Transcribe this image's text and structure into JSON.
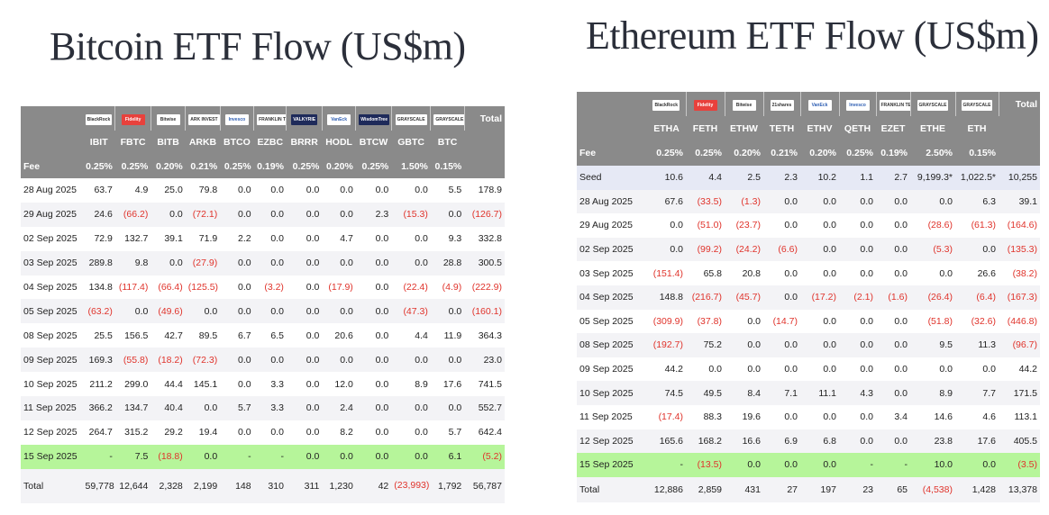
{
  "btc": {
    "title": "Bitcoin ETF Flow (US$m)",
    "logos": [
      "BlackRock",
      "Fidelity",
      "Bitwise",
      "ARK INVEST",
      "Invesco",
      "FRANKLIN TEMPLETON",
      "VALKYRIE",
      "VanEck",
      "WisdomTree",
      "GRAYSCALE",
      "GRAYSCALE"
    ],
    "total_header": "Total",
    "tickers": [
      "IBIT",
      "FBTC",
      "BITB",
      "ARKB",
      "BTCO",
      "EZBC",
      "BRRR",
      "HODL",
      "BTCW",
      "GBTC",
      "BTC"
    ],
    "fee_label": "Fee",
    "fees": [
      "0.25%",
      "0.25%",
      "0.20%",
      "0.21%",
      "0.25%",
      "0.19%",
      "0.25%",
      "0.20%",
      "0.25%",
      "1.50%",
      "0.15%"
    ],
    "rows": [
      {
        "date": "28 Aug 2025",
        "values": [
          "63.7",
          "4.9",
          "25.0",
          "79.8",
          "0.0",
          "0.0",
          "0.0",
          "0.0",
          "0.0",
          "0.0",
          "5.5",
          "178.9"
        ]
      },
      {
        "date": "29 Aug 2025",
        "values": [
          "24.6",
          "(66.2)",
          "0.0",
          "(72.1)",
          "0.0",
          "0.0",
          "0.0",
          "0.0",
          "2.3",
          "(15.3)",
          "0.0",
          "(126.7)"
        ]
      },
      {
        "date": "02 Sep 2025",
        "values": [
          "72.9",
          "132.7",
          "39.1",
          "71.9",
          "2.2",
          "0.0",
          "0.0",
          "4.7",
          "0.0",
          "0.0",
          "9.3",
          "332.8"
        ]
      },
      {
        "date": "03 Sep 2025",
        "values": [
          "289.8",
          "9.8",
          "0.0",
          "(27.9)",
          "0.0",
          "0.0",
          "0.0",
          "0.0",
          "0.0",
          "0.0",
          "28.8",
          "300.5"
        ]
      },
      {
        "date": "04 Sep 2025",
        "values": [
          "134.8",
          "(117.4)",
          "(66.4)",
          "(125.5)",
          "0.0",
          "(3.2)",
          "0.0",
          "(17.9)",
          "0.0",
          "(22.4)",
          "(4.9)",
          "(222.9)"
        ]
      },
      {
        "date": "05 Sep 2025",
        "values": [
          "(63.2)",
          "0.0",
          "(49.6)",
          "0.0",
          "0.0",
          "0.0",
          "0.0",
          "0.0",
          "0.0",
          "(47.3)",
          "0.0",
          "(160.1)"
        ]
      },
      {
        "date": "08 Sep 2025",
        "values": [
          "25.5",
          "156.5",
          "42.7",
          "89.5",
          "6.7",
          "6.5",
          "0.0",
          "20.6",
          "0.0",
          "4.4",
          "11.9",
          "364.3"
        ]
      },
      {
        "date": "09 Sep 2025",
        "values": [
          "169.3",
          "(55.8)",
          "(18.2)",
          "(72.3)",
          "0.0",
          "0.0",
          "0.0",
          "0.0",
          "0.0",
          "0.0",
          "0.0",
          "23.0"
        ]
      },
      {
        "date": "10 Sep 2025",
        "values": [
          "211.2",
          "299.0",
          "44.4",
          "145.1",
          "0.0",
          "3.3",
          "0.0",
          "12.0",
          "0.0",
          "8.9",
          "17.6",
          "741.5"
        ]
      },
      {
        "date": "11 Sep 2025",
        "values": [
          "366.2",
          "134.7",
          "40.4",
          "0.0",
          "5.7",
          "3.3",
          "0.0",
          "2.4",
          "0.0",
          "0.0",
          "0.0",
          "552.7"
        ]
      },
      {
        "date": "12 Sep 2025",
        "values": [
          "264.7",
          "315.2",
          "29.2",
          "19.4",
          "0.0",
          "0.0",
          "0.0",
          "8.2",
          "0.0",
          "0.0",
          "5.7",
          "642.4"
        ]
      },
      {
        "date": "15 Sep 2025",
        "values": [
          "-",
          "7.5",
          "(18.8)",
          "0.0",
          "-",
          "-",
          "0.0",
          "0.0",
          "0.0",
          "0.0",
          "6.1",
          "(5.2)"
        ]
      }
    ],
    "total_label": "Total",
    "totals": [
      "59,778",
      "12,644",
      "2,328",
      "2,199",
      "148",
      "310",
      "311",
      "1,230",
      "42",
      "(23,993)",
      "1,792",
      "56,787"
    ]
  },
  "eth": {
    "title": "Ethereum ETF Flow (US$m)",
    "logos": [
      "BlackRock",
      "Fidelity",
      "Bitwise",
      "21shares",
      "VanEck",
      "Invesco",
      "FRANKLIN TEMPLETON",
      "GRAYSCALE",
      "GRAYSCALE"
    ],
    "total_header": "Total",
    "tickers": [
      "ETHA",
      "FETH",
      "ETHW",
      "TETH",
      "ETHV",
      "QETH",
      "EZET",
      "ETHE",
      "ETH"
    ],
    "fee_label": "Fee",
    "fees": [
      "0.25%",
      "0.25%",
      "0.20%",
      "0.21%",
      "0.20%",
      "0.25%",
      "0.19%",
      "2.50%",
      "0.15%"
    ],
    "rows": [
      {
        "date": "Seed",
        "values": [
          "10.6",
          "4.4",
          "2.5",
          "2.3",
          "10.2",
          "1.1",
          "2.7",
          "9,199.3*",
          "1,022.5*",
          "10,255"
        ]
      },
      {
        "date": "28 Aug 2025",
        "values": [
          "67.6",
          "(33.5)",
          "(1.3)",
          "0.0",
          "0.0",
          "0.0",
          "0.0",
          "0.0",
          "6.3",
          "39.1"
        ]
      },
      {
        "date": "29 Aug 2025",
        "values": [
          "0.0",
          "(51.0)",
          "(23.7)",
          "0.0",
          "0.0",
          "0.0",
          "0.0",
          "(28.6)",
          "(61.3)",
          "(164.6)"
        ]
      },
      {
        "date": "02 Sep 2025",
        "values": [
          "0.0",
          "(99.2)",
          "(24.2)",
          "(6.6)",
          "0.0",
          "0.0",
          "0.0",
          "(5.3)",
          "0.0",
          "(135.3)"
        ]
      },
      {
        "date": "03 Sep 2025",
        "values": [
          "(151.4)",
          "65.8",
          "20.8",
          "0.0",
          "0.0",
          "0.0",
          "0.0",
          "0.0",
          "26.6",
          "(38.2)"
        ]
      },
      {
        "date": "04 Sep 2025",
        "values": [
          "148.8",
          "(216.7)",
          "(45.7)",
          "0.0",
          "(17.2)",
          "(2.1)",
          "(1.6)",
          "(26.4)",
          "(6.4)",
          "(167.3)"
        ]
      },
      {
        "date": "05 Sep 2025",
        "values": [
          "(309.9)",
          "(37.8)",
          "0.0",
          "(14.7)",
          "0.0",
          "0.0",
          "0.0",
          "(51.8)",
          "(32.6)",
          "(446.8)"
        ]
      },
      {
        "date": "08 Sep 2025",
        "values": [
          "(192.7)",
          "75.2",
          "0.0",
          "0.0",
          "0.0",
          "0.0",
          "0.0",
          "9.5",
          "11.3",
          "(96.7)"
        ]
      },
      {
        "date": "09 Sep 2025",
        "values": [
          "44.2",
          "0.0",
          "0.0",
          "0.0",
          "0.0",
          "0.0",
          "0.0",
          "0.0",
          "0.0",
          "44.2"
        ]
      },
      {
        "date": "10 Sep 2025",
        "values": [
          "74.5",
          "49.5",
          "8.4",
          "7.1",
          "11.1",
          "4.3",
          "0.0",
          "8.9",
          "7.7",
          "171.5"
        ]
      },
      {
        "date": "11 Sep 2025",
        "values": [
          "(17.4)",
          "88.3",
          "19.6",
          "0.0",
          "0.0",
          "0.0",
          "3.4",
          "14.6",
          "4.6",
          "113.1"
        ]
      },
      {
        "date": "12 Sep 2025",
        "values": [
          "165.6",
          "168.2",
          "16.6",
          "6.9",
          "6.8",
          "0.0",
          "0.0",
          "23.8",
          "17.6",
          "405.5"
        ]
      },
      {
        "date": "15 Sep 2025",
        "values": [
          "-",
          "(13.5)",
          "0.0",
          "0.0",
          "0.0",
          "-",
          "-",
          "10.0",
          "0.0",
          "(3.5)"
        ]
      }
    ],
    "total_label": "Total",
    "totals": [
      "12,886",
      "2,859",
      "431",
      "27",
      "197",
      "23",
      "65",
      "(4,538)",
      "1,428",
      "13,378"
    ]
  },
  "colors": {
    "header_bg": "#8a8a8a",
    "negative": "#e0342c",
    "highlight_row": "#b6f59a",
    "seed_row": "#e6e9f5"
  }
}
